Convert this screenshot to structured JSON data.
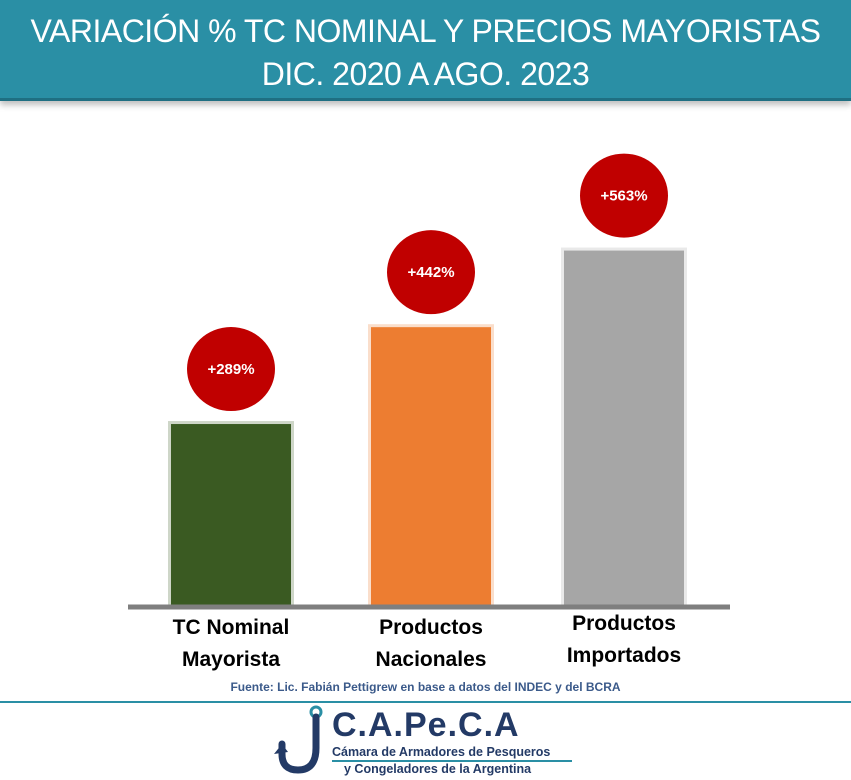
{
  "header": {
    "title_line1": "VARIACIÓN % TC NOMINAL Y PRECIOS MAYORISTAS",
    "title_line2": "DIC. 2020 A AGO. 2023"
  },
  "chart_data": {
    "type": "bar",
    "categories": [
      [
        "TC Nominal",
        "Mayorista"
      ],
      [
        "Productos",
        "Nacionales"
      ],
      [
        "Productos",
        "Importados"
      ]
    ],
    "values": [
      289,
      442,
      563
    ],
    "data_labels": [
      "+289%",
      "+442%",
      "+563%"
    ],
    "colors": [
      "#3a5a22",
      "#ed7d31",
      "#a6a6a6"
    ],
    "label_badge_color": "#c00000",
    "ylim": [
      0,
      600
    ],
    "grid": false,
    "legend": "none"
  },
  "source": "Fuente: Lic. Fabián Pettigrew en base a datos del INDEC y del BCRA",
  "logo": {
    "name": "C.A.Pe.C.A",
    "subtitle_line1": "Cámara de Armadores de Pesqueros",
    "subtitle_line2": "y Congeladores de la Argentina",
    "icon": "fish-hook-icon"
  }
}
